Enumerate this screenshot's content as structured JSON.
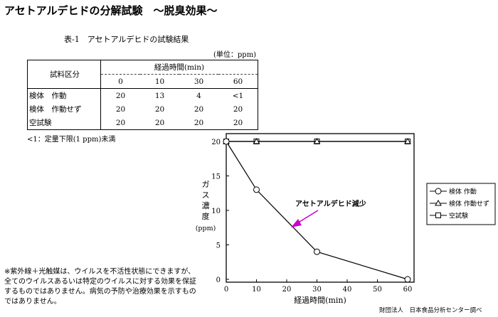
{
  "title": "アセトアルデヒドの分解試験　～脱臭効果～",
  "table": {
    "caption": "表-1　アセトアルデヒドの試験結果",
    "unit": "(単位：ppm)",
    "row_header": "試料区分",
    "col_group_header": "経過時間(min)",
    "columns": [
      "0",
      "10",
      "30",
      "60"
    ],
    "rows": [
      {
        "label": "検体　作動",
        "values": [
          "20",
          "13",
          "4",
          "<1"
        ]
      },
      {
        "label": "検体　作動せず",
        "values": [
          "20",
          "20",
          "20",
          "20"
        ]
      },
      {
        "label": "空試験",
        "values": [
          "20",
          "20",
          "20",
          "20"
        ]
      }
    ],
    "footnote": "<1：定量下限(1 ppm)未満"
  },
  "note": "※紫外線＋光触媒は、ウイルスを不活性状態にできますが、全てのウイルスあるいは特定のウイルスに対する効果を保証するものではありません。病気の予防や治療効果を示すものではありません。",
  "source": "財団法人　日本食品分析センター調べ",
  "chart_data": {
    "type": "line",
    "xlabel": "経過時間(min)",
    "ylabel": "ガス濃度(ppm)",
    "xlim": [
      0,
      60
    ],
    "ylim": [
      0,
      20
    ],
    "xticks": [
      0,
      10,
      20,
      30,
      40,
      50,
      60
    ],
    "yticks": [
      0,
      5,
      10,
      15,
      20
    ],
    "grid": false,
    "legend_position": "right",
    "annotation": "アセトアルデヒド減少",
    "series": [
      {
        "name": "検体 作動",
        "marker": "circle",
        "x": [
          0,
          10,
          30,
          60
        ],
        "y": [
          20,
          13,
          4,
          0
        ]
      },
      {
        "name": "検体 作動せず",
        "marker": "triangle",
        "x": [
          0,
          10,
          30,
          60
        ],
        "y": [
          20,
          20,
          20,
          20
        ]
      },
      {
        "name": "空試験",
        "marker": "square",
        "x": [
          0,
          10,
          30,
          60
        ],
        "y": [
          20,
          20,
          20,
          20
        ]
      }
    ],
    "colors": {
      "annotation_arrow": "#cc00cc"
    }
  }
}
